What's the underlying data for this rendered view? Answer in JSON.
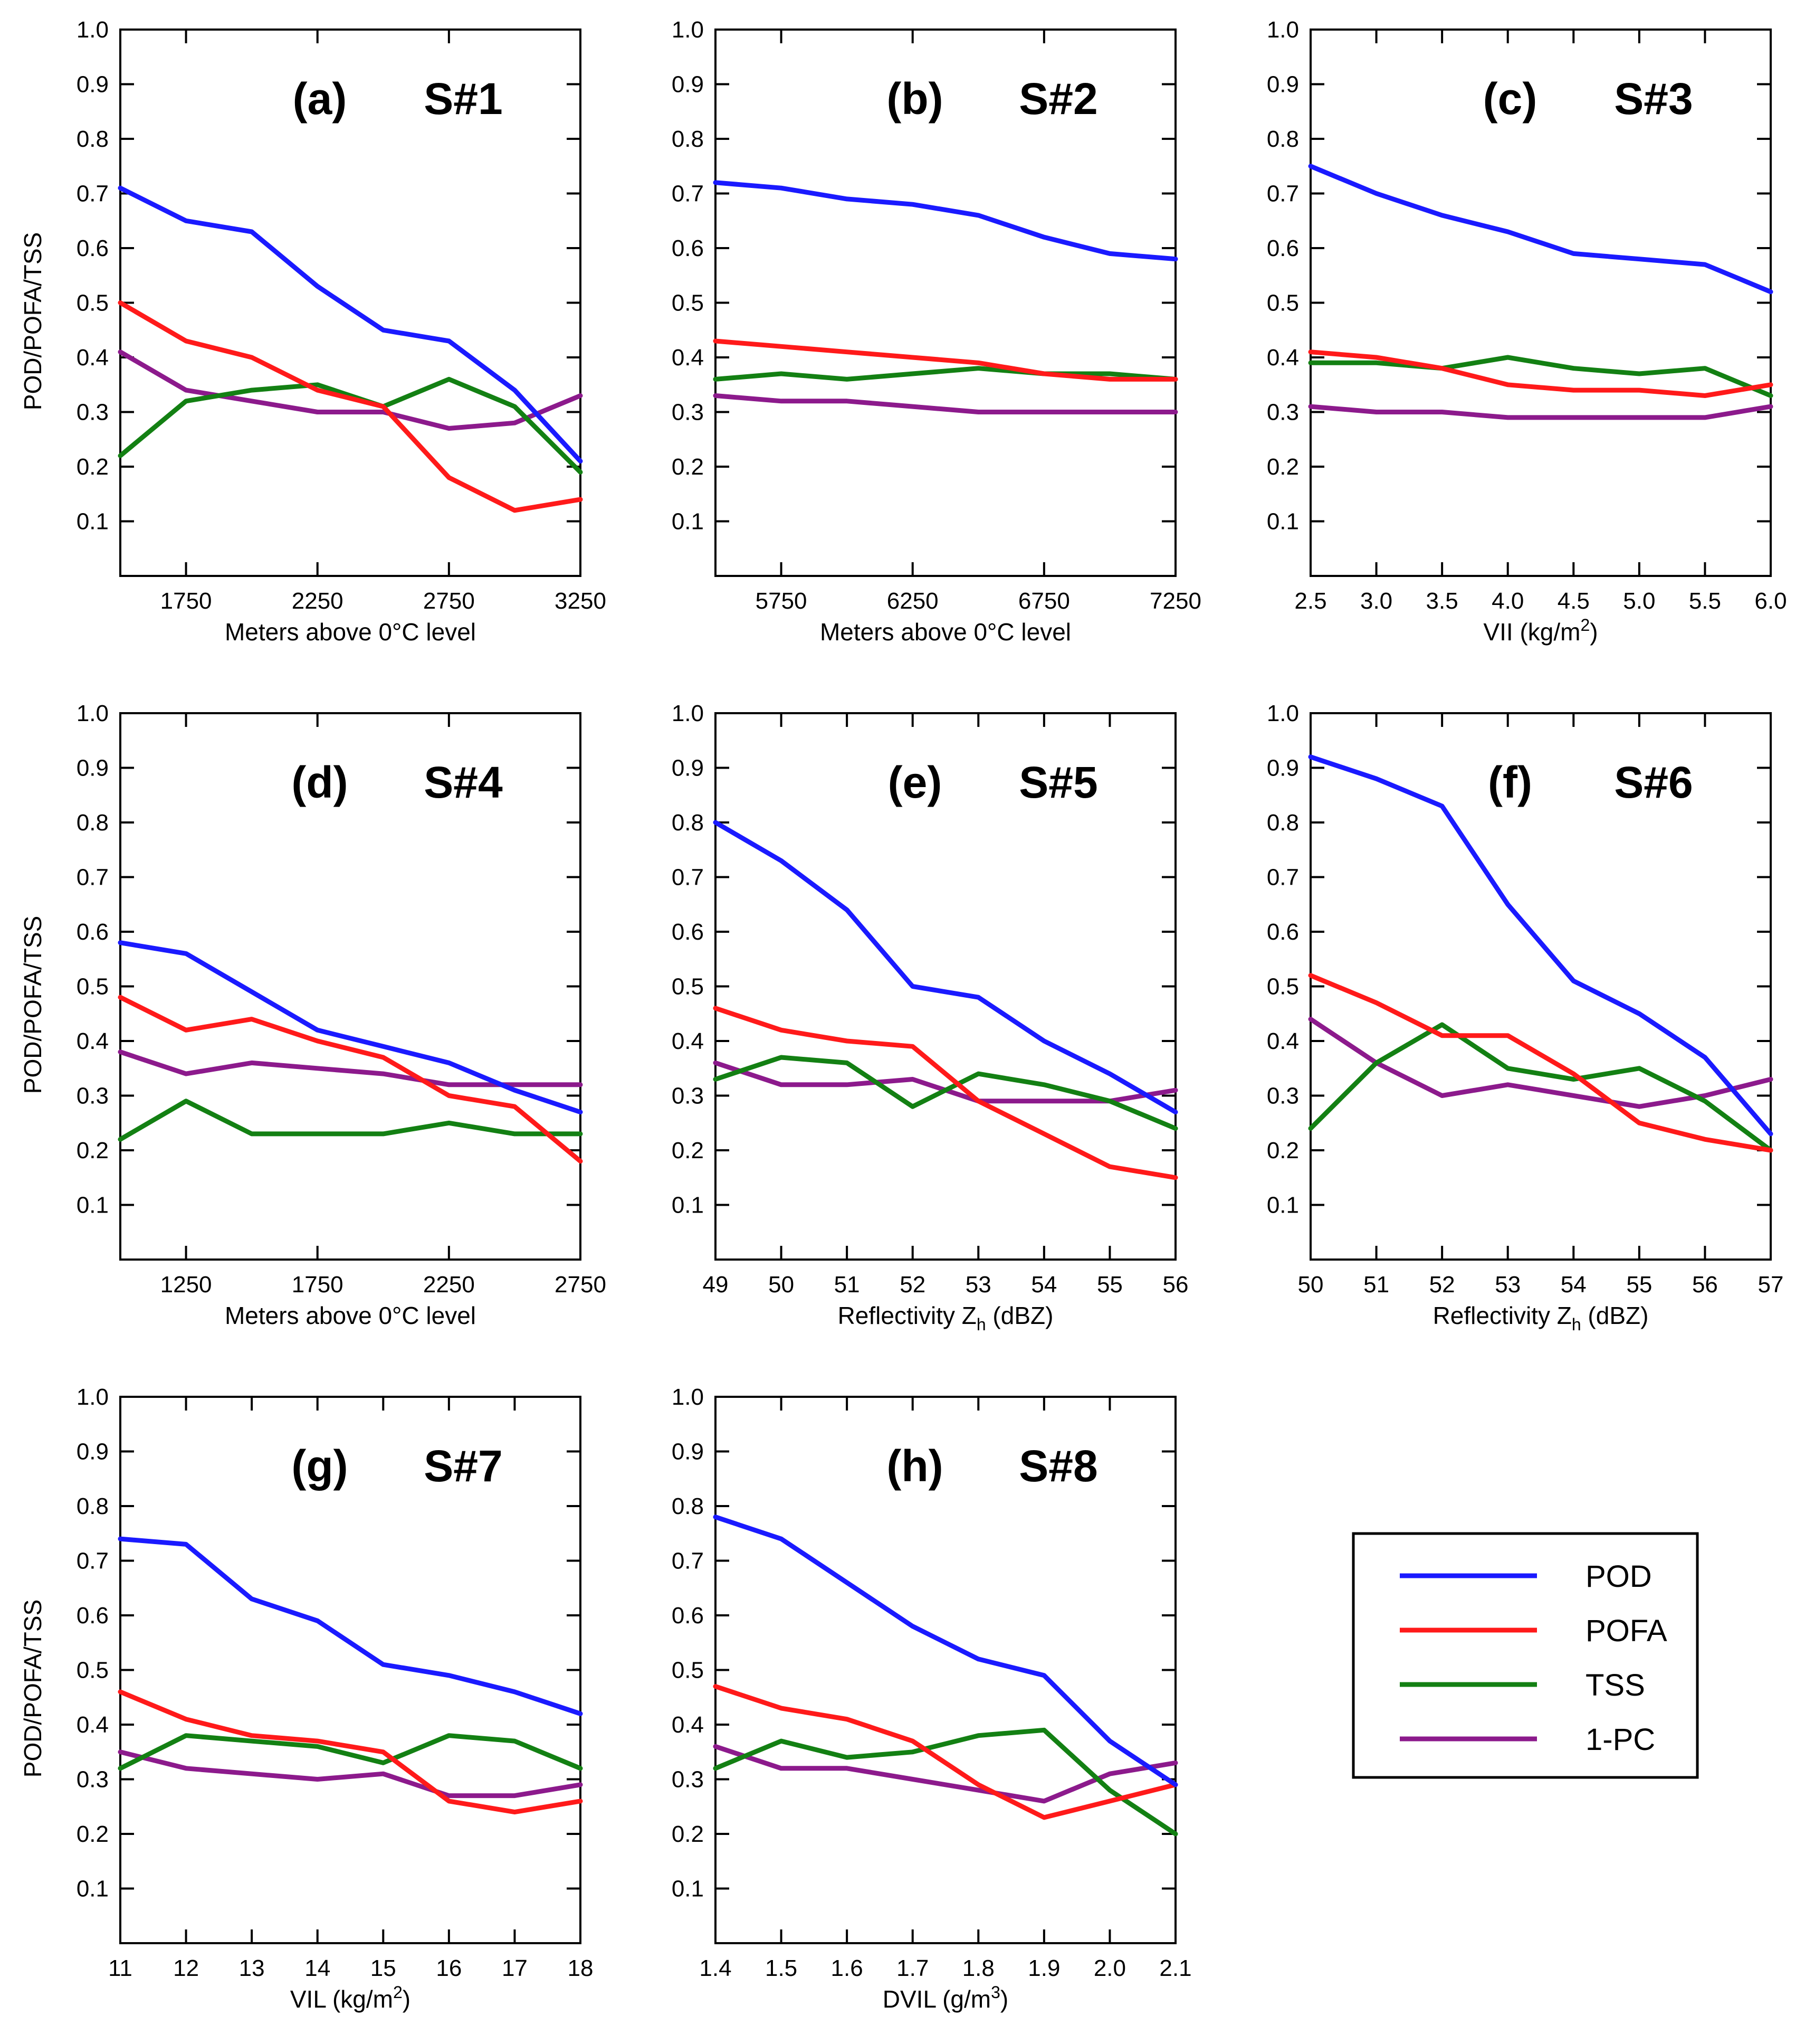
{
  "figure": {
    "series_names": [
      "POD",
      "POFA",
      "TSS",
      "1-PC"
    ],
    "series_colors": {
      "POD": "#1a1aff",
      "POFA": "#ff1a1a",
      "TSS": "#138013",
      "1-PC": "#8c1a8c"
    },
    "y_axis_label": "POD/POFA/TSS",
    "y_ticks": [
      "0.1",
      "0.2",
      "0.3",
      "0.4",
      "0.5",
      "0.6",
      "0.7",
      "0.8",
      "0.9",
      "1.0"
    ]
  },
  "legend": {
    "items": [
      {
        "label": "POD",
        "color": "#1a1aff"
      },
      {
        "label": "POFA",
        "color": "#ff1a1a"
      },
      {
        "label": "TSS",
        "color": "#138013"
      },
      {
        "label": "1-PC",
        "color": "#8c1a8c"
      }
    ]
  },
  "chart_data": [
    {
      "type": "line",
      "panel": "(a)",
      "title": "S#1",
      "xlabel": "Meters above 0°C level",
      "ylabel": "POD/POFA/TSS",
      "xlim": [
        1500,
        3250
      ],
      "ylim": [
        0,
        1.0
      ],
      "x_ticks": [
        "1750",
        "2250",
        "2750",
        "3250"
      ],
      "x": [
        1500,
        1750,
        2000,
        2250,
        2500,
        2750,
        3000,
        3250
      ],
      "series": [
        {
          "name": "POD",
          "values": [
            0.71,
            0.65,
            0.63,
            0.53,
            0.45,
            0.43,
            0.34,
            0.21
          ]
        },
        {
          "name": "POFA",
          "values": [
            0.5,
            0.43,
            0.4,
            0.34,
            0.31,
            0.18,
            0.12,
            0.14
          ]
        },
        {
          "name": "TSS",
          "values": [
            0.22,
            0.32,
            0.34,
            0.35,
            0.31,
            0.36,
            0.31,
            0.19
          ]
        },
        {
          "name": "1-PC",
          "values": [
            0.41,
            0.34,
            0.32,
            0.3,
            0.3,
            0.27,
            0.28,
            0.33
          ]
        }
      ]
    },
    {
      "type": "line",
      "panel": "(b)",
      "title": "S#2",
      "xlabel": "Meters above 0°C level",
      "ylabel": "",
      "xlim": [
        5500,
        7250
      ],
      "ylim": [
        0,
        1.0
      ],
      "x_ticks": [
        "5750",
        "6250",
        "6750",
        "7250"
      ],
      "x": [
        5500,
        5750,
        6000,
        6250,
        6500,
        6750,
        7000,
        7250
      ],
      "series": [
        {
          "name": "POD",
          "values": [
            0.72,
            0.71,
            0.69,
            0.68,
            0.66,
            0.62,
            0.59,
            0.58
          ]
        },
        {
          "name": "POFA",
          "values": [
            0.43,
            0.42,
            0.41,
            0.4,
            0.39,
            0.37,
            0.36,
            0.36
          ]
        },
        {
          "name": "TSS",
          "values": [
            0.36,
            0.37,
            0.36,
            0.37,
            0.38,
            0.37,
            0.37,
            0.36
          ]
        },
        {
          "name": "1-PC",
          "values": [
            0.33,
            0.32,
            0.32,
            0.31,
            0.3,
            0.3,
            0.3,
            0.3
          ]
        }
      ]
    },
    {
      "type": "line",
      "panel": "(c)",
      "title": "S#3",
      "xlabel": "VII (kg/m",
      "xlabel_sup": "2",
      "xlabel_end": ")",
      "ylabel": "",
      "xlim": [
        2.5,
        6.0
      ],
      "ylim": [
        0,
        1.0
      ],
      "x_ticks": [
        "2.5",
        "3.0",
        "3.5",
        "4.0",
        "4.5",
        "5.0",
        "5.5",
        "6.0"
      ],
      "x": [
        2.5,
        3.0,
        3.5,
        4.0,
        4.5,
        5.0,
        5.5,
        6.0
      ],
      "series": [
        {
          "name": "POD",
          "values": [
            0.75,
            0.7,
            0.66,
            0.63,
            0.59,
            0.58,
            0.57,
            0.52
          ]
        },
        {
          "name": "POFA",
          "values": [
            0.41,
            0.4,
            0.38,
            0.35,
            0.34,
            0.34,
            0.33,
            0.35
          ]
        },
        {
          "name": "TSS",
          "values": [
            0.39,
            0.39,
            0.38,
            0.4,
            0.38,
            0.37,
            0.38,
            0.33
          ]
        },
        {
          "name": "1-PC",
          "values": [
            0.31,
            0.3,
            0.3,
            0.29,
            0.29,
            0.29,
            0.29,
            0.31
          ]
        }
      ]
    },
    {
      "type": "line",
      "panel": "(d)",
      "title": "S#4",
      "xlabel": "Meters above 0°C level",
      "ylabel": "POD/POFA/TSS",
      "xlim": [
        1000,
        2750
      ],
      "ylim": [
        0,
        1.0
      ],
      "x_ticks": [
        "1250",
        "1750",
        "2250",
        "2750"
      ],
      "x": [
        1000,
        1250,
        1500,
        1750,
        2000,
        2250,
        2500,
        2750
      ],
      "series": [
        {
          "name": "POD",
          "values": [
            0.58,
            0.56,
            0.49,
            0.42,
            0.39,
            0.36,
            0.31,
            0.27
          ]
        },
        {
          "name": "POFA",
          "values": [
            0.48,
            0.42,
            0.44,
            0.4,
            0.37,
            0.3,
            0.28,
            0.18
          ]
        },
        {
          "name": "TSS",
          "values": [
            0.22,
            0.29,
            0.23,
            0.23,
            0.23,
            0.25,
            0.23,
            0.23
          ]
        },
        {
          "name": "1-PC",
          "values": [
            0.38,
            0.34,
            0.36,
            0.35,
            0.34,
            0.32,
            0.32,
            0.32
          ]
        }
      ]
    },
    {
      "type": "line",
      "panel": "(e)",
      "title": "S#5",
      "xlabel": "Reflectivity Z",
      "xlabel_sub": "h",
      "xlabel_end": " (dBZ)",
      "ylabel": "",
      "xlim": [
        49,
        56
      ],
      "ylim": [
        0,
        1.0
      ],
      "x_ticks": [
        "49",
        "50",
        "51",
        "52",
        "53",
        "54",
        "55",
        "56"
      ],
      "x": [
        49,
        50,
        51,
        52,
        53,
        54,
        55,
        56
      ],
      "series": [
        {
          "name": "POD",
          "values": [
            0.8,
            0.73,
            0.64,
            0.5,
            0.48,
            0.4,
            0.34,
            0.27
          ]
        },
        {
          "name": "POFA",
          "values": [
            0.46,
            0.42,
            0.4,
            0.39,
            0.29,
            0.23,
            0.17,
            0.15
          ]
        },
        {
          "name": "TSS",
          "values": [
            0.33,
            0.37,
            0.36,
            0.28,
            0.34,
            0.32,
            0.29,
            0.24
          ]
        },
        {
          "name": "1-PC",
          "values": [
            0.36,
            0.32,
            0.32,
            0.33,
            0.29,
            0.29,
            0.29,
            0.31
          ]
        }
      ]
    },
    {
      "type": "line",
      "panel": "(f)",
      "title": "S#6",
      "xlabel": "Reflectivity Z",
      "xlabel_sub": "h",
      "xlabel_end": " (dBZ)",
      "ylabel": "",
      "xlim": [
        50,
        57
      ],
      "ylim": [
        0,
        1.0
      ],
      "x_ticks": [
        "50",
        "51",
        "52",
        "53",
        "54",
        "55",
        "56",
        "57"
      ],
      "x": [
        50,
        51,
        52,
        53,
        54,
        55,
        56,
        57
      ],
      "series": [
        {
          "name": "POD",
          "values": [
            0.92,
            0.88,
            0.83,
            0.65,
            0.51,
            0.45,
            0.37,
            0.23
          ]
        },
        {
          "name": "POFA",
          "values": [
            0.52,
            0.47,
            0.41,
            0.41,
            0.34,
            0.25,
            0.22,
            0.2
          ]
        },
        {
          "name": "TSS",
          "values": [
            0.24,
            0.36,
            0.43,
            0.35,
            0.33,
            0.35,
            0.29,
            0.2
          ]
        },
        {
          "name": "1-PC",
          "values": [
            0.44,
            0.36,
            0.3,
            0.32,
            0.3,
            0.28,
            0.3,
            0.33
          ]
        }
      ]
    },
    {
      "type": "line",
      "panel": "(g)",
      "title": "S#7",
      "xlabel": "VIL (kg/m",
      "xlabel_sup": "2",
      "xlabel_end": ")",
      "ylabel": "POD/POFA/TSS",
      "xlim": [
        11,
        18
      ],
      "ylim": [
        0,
        1.0
      ],
      "x_ticks": [
        "11",
        "12",
        "13",
        "14",
        "15",
        "16",
        "17",
        "18"
      ],
      "x": [
        11,
        12,
        13,
        14,
        15,
        16,
        17,
        18
      ],
      "series": [
        {
          "name": "POD",
          "values": [
            0.74,
            0.73,
            0.63,
            0.59,
            0.51,
            0.49,
            0.46,
            0.42
          ]
        },
        {
          "name": "POFA",
          "values": [
            0.46,
            0.41,
            0.38,
            0.37,
            0.35,
            0.26,
            0.24,
            0.26
          ]
        },
        {
          "name": "TSS",
          "values": [
            0.32,
            0.38,
            0.37,
            0.36,
            0.33,
            0.38,
            0.37,
            0.32
          ]
        },
        {
          "name": "1-PC",
          "values": [
            0.35,
            0.32,
            0.31,
            0.3,
            0.31,
            0.27,
            0.27,
            0.29
          ]
        }
      ]
    },
    {
      "type": "line",
      "panel": "(h)",
      "title": "S#8",
      "xlabel": "DVIL (g/m",
      "xlabel_sup": "3",
      "xlabel_end": ")",
      "ylabel": "",
      "xlim": [
        1.4,
        2.1
      ],
      "ylim": [
        0,
        1.0
      ],
      "x_ticks": [
        "1.4",
        "1.5",
        "1.6",
        "1.7",
        "1.8",
        "1.9",
        "2.0",
        "2.1"
      ],
      "x": [
        1.4,
        1.5,
        1.6,
        1.7,
        1.8,
        1.9,
        2.0,
        2.1
      ],
      "series": [
        {
          "name": "POD",
          "values": [
            0.78,
            0.74,
            0.66,
            0.58,
            0.52,
            0.49,
            0.37,
            0.29
          ]
        },
        {
          "name": "POFA",
          "values": [
            0.47,
            0.43,
            0.41,
            0.37,
            0.29,
            0.23,
            0.26,
            0.29
          ]
        },
        {
          "name": "TSS",
          "values": [
            0.32,
            0.37,
            0.34,
            0.35,
            0.38,
            0.39,
            0.28,
            0.2
          ]
        },
        {
          "name": "1-PC",
          "values": [
            0.36,
            0.32,
            0.32,
            0.3,
            0.28,
            0.26,
            0.31,
            0.33
          ]
        }
      ]
    }
  ]
}
